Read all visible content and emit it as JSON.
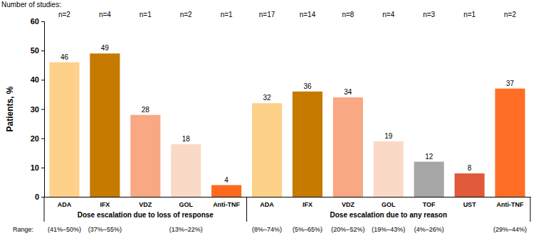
{
  "chart_data": {
    "type": "bar",
    "y_label": "Patients, %",
    "categories": [
      "ADA",
      "IFX",
      "VDZ",
      "GOL",
      "Anti-TNF",
      "ADA",
      "IFX",
      "VDZ",
      "GOL",
      "TOF",
      "UST",
      "Anti-TNF"
    ],
    "values": [
      46,
      49,
      28,
      18,
      4,
      32,
      36,
      34,
      19,
      12,
      8,
      37
    ],
    "colors": [
      "#fdd18a",
      "#c67a00",
      "#f8a882",
      "#fadac7",
      "#ff6a1f",
      "#fdd18a",
      "#c67a00",
      "#f8a882",
      "#fadac7",
      "#a6a6a6",
      "#e05a3a",
      "#ff6e24"
    ],
    "groups": [
      "Dose escalation due to loss of response",
      "Dose escalation due to loss of response",
      "Dose escalation due to loss of response",
      "Dose escalation due to loss of response",
      "Dose escalation due to loss of response",
      "Dose escalation due to any reason",
      "Dose escalation due to any reason",
      "Dose escalation due to any reason",
      "Dose escalation due to any reason",
      "Dose escalation due to any reason",
      "Dose escalation due to any reason",
      "Dose escalation due to any reason"
    ],
    "studies_title": "Number of studies:",
    "studies": [
      "n=2",
      "n=4",
      "n=1",
      "n=2",
      "n=1",
      "n=17",
      "n=14",
      "n=8",
      "n=4",
      "n=3",
      "n=1",
      "n=2"
    ],
    "range_title": "Range:",
    "ranges": [
      "(41%–50%)",
      "(37%–55%)",
      null,
      "(13%–22%)",
      null,
      "(8%–74%)",
      "(5%–65%)",
      "(20%–52%)",
      "(19%–43%)",
      "(4%–26%)",
      null,
      "(29%–44%)"
    ],
    "ylim": [
      0,
      60
    ],
    "yticks": [
      0,
      10,
      20,
      30,
      40,
      50,
      60
    ],
    "grid": false,
    "data_labels": true
  }
}
